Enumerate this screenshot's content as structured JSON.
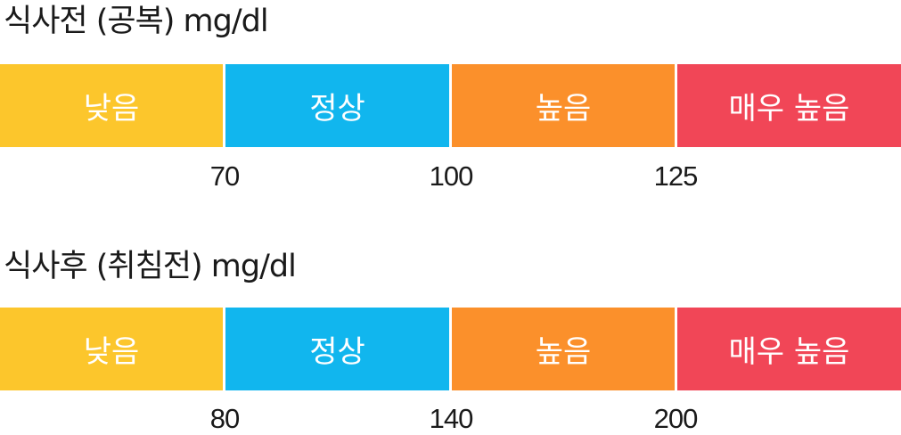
{
  "sections": [
    {
      "title": "식사전 (공복) mg/dl",
      "segments": [
        {
          "label": "낮음",
          "color": "#fcc62c"
        },
        {
          "label": "정상",
          "color": "#11b6ee"
        },
        {
          "label": "높음",
          "color": "#fb902b"
        },
        {
          "label": "매우 높음",
          "color": "#f14657"
        }
      ],
      "thresholds": [
        "70",
        "100",
        "125"
      ]
    },
    {
      "title": "식사후 (취침전) mg/dl",
      "segments": [
        {
          "label": "낮음",
          "color": "#fcc62c"
        },
        {
          "label": "정상",
          "color": "#11b6ee"
        },
        {
          "label": "높음",
          "color": "#fb902b"
        },
        {
          "label": "매우 높음",
          "color": "#f14657"
        }
      ],
      "thresholds": [
        "80",
        "140",
        "200"
      ]
    }
  ]
}
